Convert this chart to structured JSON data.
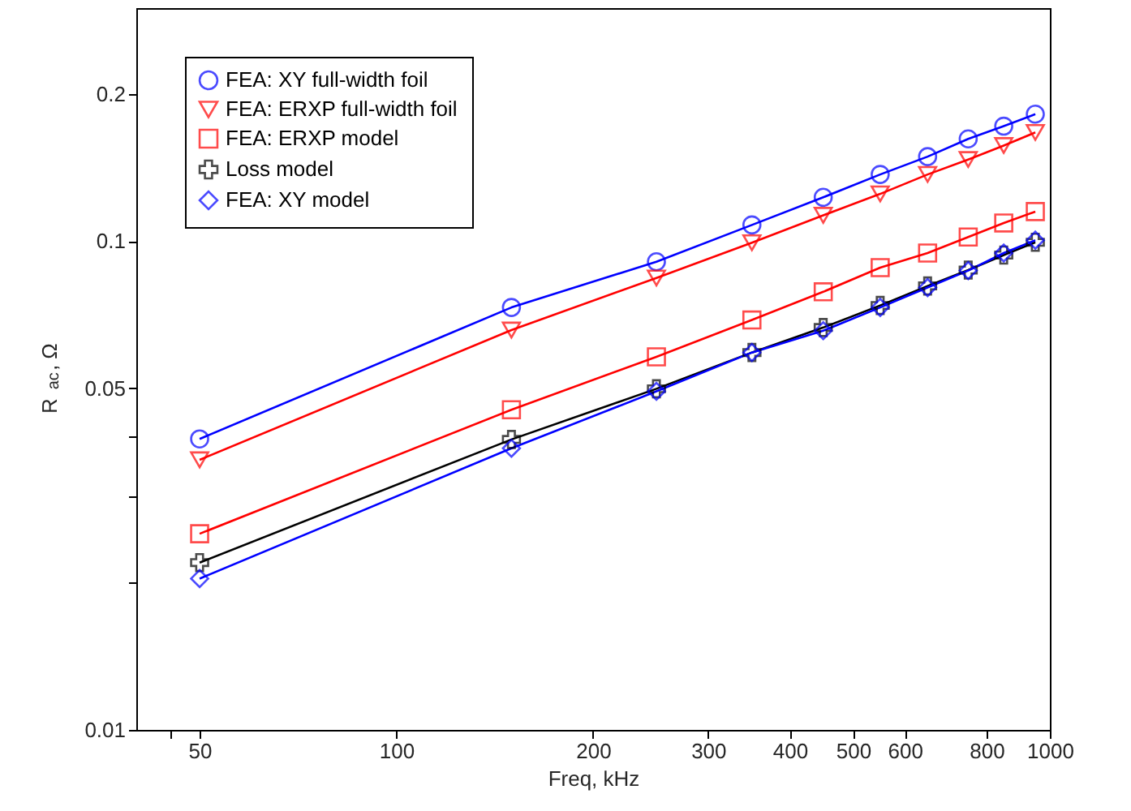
{
  "chart_data": {
    "type": "line",
    "xlabel": "Freq, kHz",
    "ylabel": "R$_{ac}$, Ω",
    "log": "xy",
    "grid": false,
    "legend": "top left",
    "xlim": [
      40,
      1000
    ],
    "xticks": [
      {
        "value": 45,
        "label": null
      },
      50,
      100,
      200,
      300,
      400,
      500,
      600,
      800,
      1000
    ],
    "ylim": [
      0.01,
      0.3
    ],
    "yticks": [
      0.01,
      {
        "value": 0.02,
        "label": null
      },
      {
        "value": 0.03,
        "label": null
      },
      {
        "value": 0.04,
        "label": null
      },
      0.05,
      0.1,
      0.2
    ],
    "x": [
      50,
      150,
      250,
      350,
      450,
      550,
      650,
      750,
      850,
      950
    ],
    "series": [
      {
        "name": "FEA: XY full-width foil",
        "color": "#0000ff",
        "marker": "circle",
        "values": [
          0.0394,
          0.0732,
          0.0908,
          0.108,
          0.123,
          0.137,
          0.149,
          0.162,
          0.172,
          0.182
        ]
      },
      {
        "name": "FEA: ERXP full-width foil",
        "color": "#ff0000",
        "marker": "triangle",
        "values": [
          0.0357,
          0.0658,
          0.0841,
          0.0993,
          0.113,
          0.125,
          0.137,
          0.147,
          0.157,
          0.167
        ]
      },
      {
        "name": "FEA: ERXP model",
        "color": "#ff0000",
        "marker": "square",
        "values": [
          0.0252,
          0.0452,
          0.058,
          0.069,
          0.0788,
          0.0883,
          0.0946,
          0.102,
          0.109,
          0.115
        ]
      },
      {
        "name": "Loss model",
        "color": "#000000",
        "marker": "cross",
        "values": [
          0.022,
          0.0393,
          0.0499,
          0.0592,
          0.0666,
          0.0739,
          0.081,
          0.0873,
          0.0937,
          0.0995
        ]
      },
      {
        "name": "FEA: XY model",
        "color": "#0000ff",
        "marker": "diamond",
        "values": [
          0.0204,
          0.0377,
          0.0493,
          0.0592,
          0.0656,
          0.0732,
          0.0804,
          0.0871,
          0.0946,
          0.1005
        ]
      }
    ]
  }
}
